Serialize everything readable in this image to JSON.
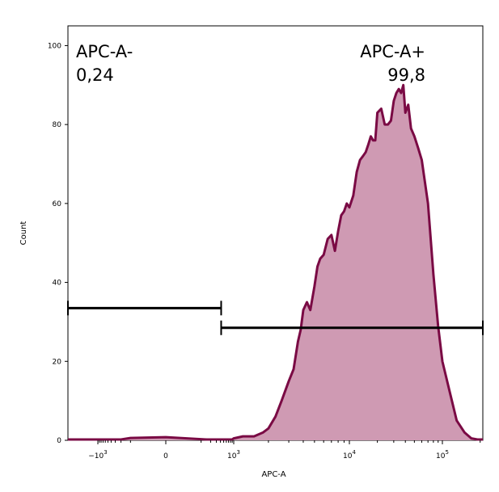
{
  "chart_data": {
    "type": "area",
    "xlabel": "APC-A",
    "ylabel": "Count",
    "x_scale": "biexponential",
    "xlim": [
      -2000,
      210000
    ],
    "ylim": [
      0,
      105
    ],
    "x_ticks": [
      {
        "value": -1000,
        "base": "−10",
        "exp": "3"
      },
      {
        "value": 0,
        "base": "0",
        "exp": ""
      },
      {
        "value": 1000,
        "base": "10",
        "exp": "3"
      },
      {
        "value": 10000,
        "base": "10",
        "exp": "4"
      },
      {
        "value": 100000,
        "base": "10",
        "exp": "5"
      }
    ],
    "y_ticks": [
      0,
      20,
      40,
      60,
      80,
      100
    ],
    "grid": false,
    "fill_color": "#cf9ab3",
    "line_color": "#7a0a44",
    "histogram": {
      "x": [
        -2000,
        -1500,
        -1000,
        -500,
        -200,
        -100,
        0,
        150,
        300,
        500,
        700,
        900,
        1000,
        1200,
        1500,
        1800,
        2000,
        2300,
        2600,
        3000,
        3300,
        3600,
        3800,
        4000,
        4300,
        4600,
        5000,
        5300,
        5600,
        6000,
        6500,
        7000,
        7500,
        8000,
        8500,
        9000,
        9500,
        10000,
        11000,
        12000,
        13000,
        14000,
        15000,
        16000,
        17000,
        18000,
        19000,
        20000,
        22000,
        24000,
        26000,
        28000,
        30000,
        32000,
        34000,
        36000,
        38000,
        40000,
        43000,
        46000,
        50000,
        55000,
        60000,
        70000,
        80000,
        90000,
        100000,
        115000,
        130000,
        150000,
        170000,
        190000,
        210000
      ],
      "y": [
        0,
        0,
        0,
        0,
        0.2,
        0.6,
        0.8,
        0.1,
        0,
        0,
        0,
        0,
        0.5,
        1,
        1,
        2,
        3,
        6,
        10,
        15,
        18,
        25,
        28,
        33,
        35,
        33,
        39,
        44,
        46,
        47,
        51,
        52,
        48,
        53,
        57,
        58,
        60,
        59,
        62,
        68,
        71,
        72,
        73,
        75,
        77,
        76,
        76,
        83,
        84,
        80,
        80,
        81,
        86,
        88,
        89,
        88,
        90,
        83,
        85,
        79,
        77,
        74,
        71,
        60,
        42,
        29,
        20,
        12,
        5,
        2,
        0.5,
        0,
        0
      ]
    },
    "gates": [
      {
        "name": "APC-A-",
        "value": "0,24",
        "x_range": [
          -2000,
          420
        ],
        "y_level": 33.5
      },
      {
        "name": "APC-A+",
        "value": "99,8",
        "x_range": [
          420,
          210000
        ],
        "y_level": 28.5
      }
    ]
  }
}
